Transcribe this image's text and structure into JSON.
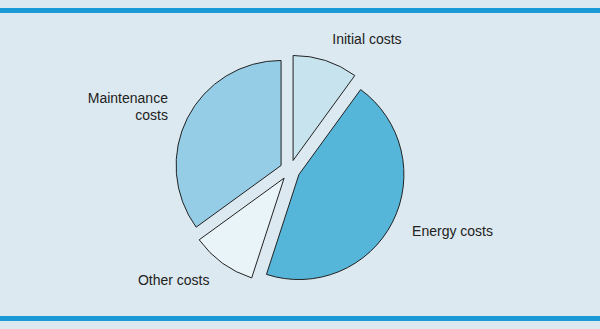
{
  "chart_data": {
    "type": "pie",
    "categories": [
      "Initial costs",
      "Energy costs",
      "Other costs",
      "Maintenance costs"
    ],
    "values": [
      10,
      45,
      10,
      35
    ],
    "colors": [
      "#c6e3ee",
      "#55b6da",
      "#e9f4f8",
      "#95cce6"
    ]
  }
}
